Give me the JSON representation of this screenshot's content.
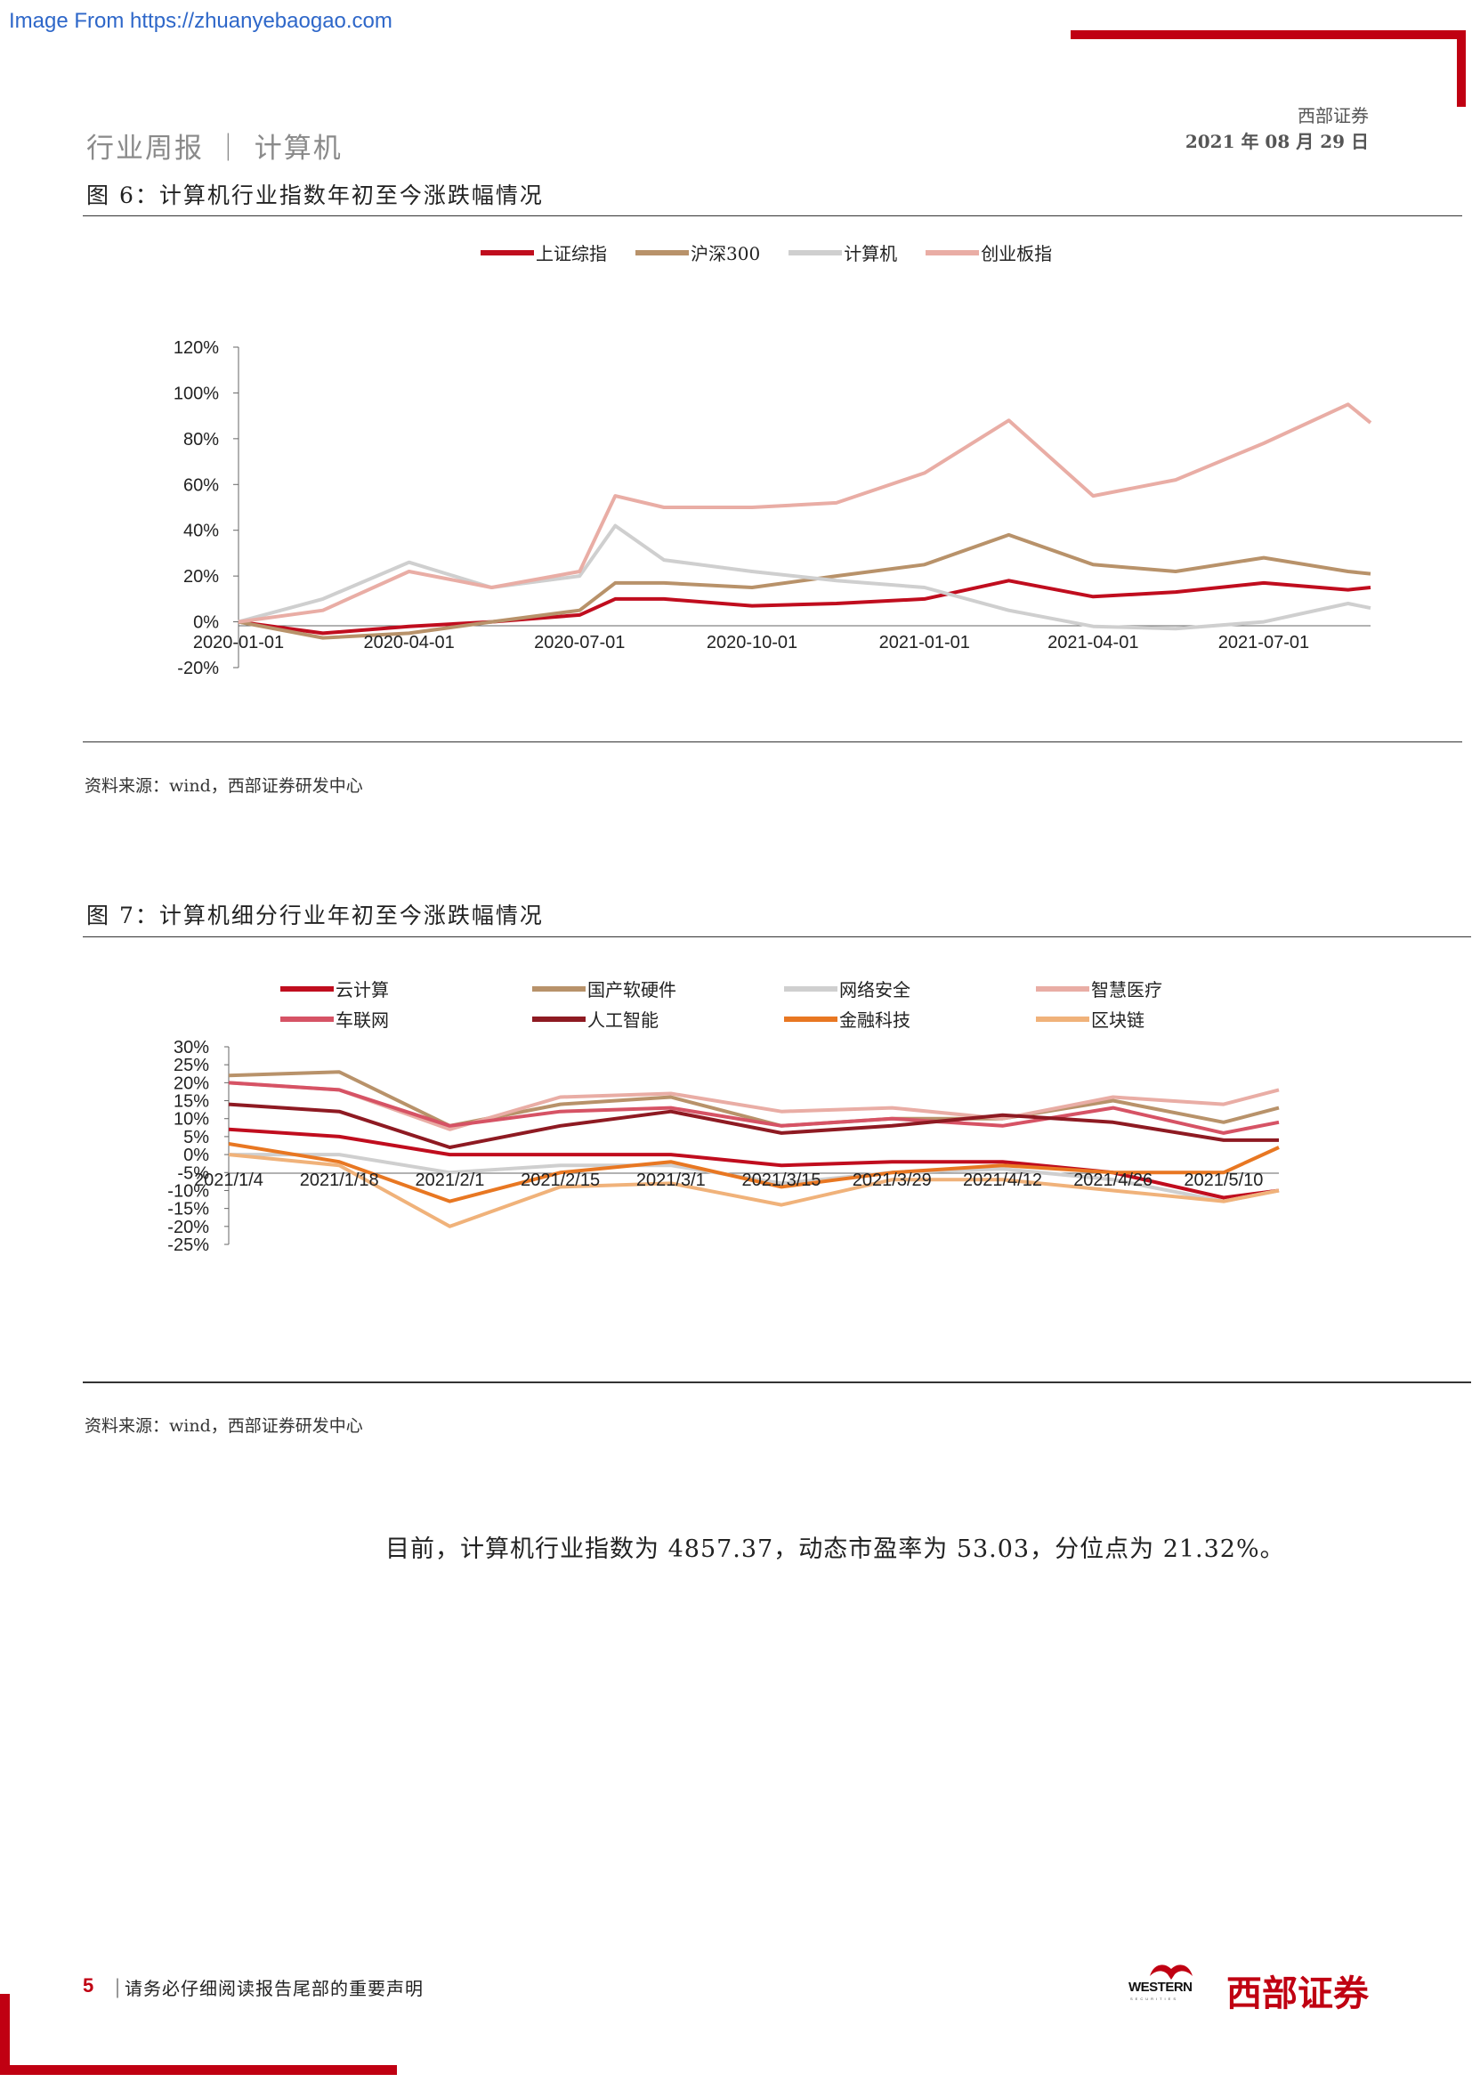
{
  "watermark": "Image From https://zhuanyebaogao.com",
  "header": {
    "left": "行业周报 ｜ 计算机",
    "company": "西部证券",
    "date": "2021 年 08 月 29 日"
  },
  "figures": [
    {
      "title": "图 6：计算机行业指数年初至今涨跌幅情况",
      "source": "资料来源：wind，西部证券研发中心"
    },
    {
      "title": "图 7：计算机细分行业年初至今涨跌幅情况",
      "source": "资料来源：wind，西部证券研发中心"
    }
  ],
  "body_text": "目前，计算机行业指数为 4857.37，动态市盈率为 53.03，分位点为 21.32%。",
  "footer": {
    "page": "5",
    "separator": "｜",
    "disclaimer": "请务必仔细阅读报告尾部的重要声明",
    "logo_en": "WESTERN",
    "logo_en_sub": "SECURITIES",
    "logo_cn": "西部证券"
  },
  "chart_data": [
    {
      "type": "line",
      "title": "图 6：计算机行业指数年初至今涨跌幅情况",
      "x": [
        "2020-01-01",
        "2020-02-15",
        "2020-04-01",
        "2020-05-15",
        "2020-07-01",
        "2020-07-20",
        "2020-08-15",
        "2020-10-01",
        "2020-11-15",
        "2021-01-01",
        "2021-02-15",
        "2021-04-01",
        "2021-05-15",
        "2021-07-01",
        "2021-08-15",
        "2021-08-27"
      ],
      "xticks": [
        "2020-01-01",
        "2020-04-01",
        "2020-07-01",
        "2020-10-01",
        "2021-01-01",
        "2021-04-01",
        "2021-07-01"
      ],
      "yticks": [
        "120%",
        "100%",
        "80%",
        "60%",
        "40%",
        "20%",
        "0%",
        "-20%"
      ],
      "ylim": [
        -20,
        120
      ],
      "series": [
        {
          "name": "上证综指",
          "color": "#c00d1e",
          "values": [
            0,
            -5,
            -2,
            0,
            3,
            10,
            10,
            7,
            8,
            10,
            18,
            11,
            13,
            17,
            14,
            15
          ]
        },
        {
          "name": "沪深300",
          "color": "#b8926a",
          "values": [
            0,
            -7,
            -5,
            0,
            5,
            17,
            17,
            15,
            20,
            25,
            38,
            25,
            22,
            28,
            22,
            21
          ]
        },
        {
          "name": "计算机",
          "color": "#cfcfcf",
          "values": [
            0,
            10,
            26,
            15,
            20,
            42,
            27,
            22,
            18,
            15,
            5,
            -2,
            -3,
            0,
            8,
            6
          ]
        },
        {
          "name": "创业板指",
          "color": "#e9ada5",
          "values": [
            0,
            5,
            22,
            15,
            22,
            55,
            50,
            50,
            52,
            65,
            88,
            55,
            62,
            78,
            95,
            87
          ]
        }
      ]
    },
    {
      "type": "line",
      "title": "图 7：计算机细分行业年初至今涨跌幅情况",
      "x": [
        "2021/1/4",
        "2021/1/18",
        "2021/2/1",
        "2021/2/15",
        "2021/3/1",
        "2021/3/15",
        "2021/3/29",
        "2021/4/12",
        "2021/4/26",
        "2021/5/10",
        "2021/5/17"
      ],
      "xticks": [
        "2021/1/4",
        "2021/1/18",
        "2021/2/1",
        "2021/2/15",
        "2021/3/1",
        "2021/3/15",
        "2021/3/29",
        "2021/4/12",
        "2021/4/26",
        "2021/5/10"
      ],
      "yticks": [
        "30%",
        "25%",
        "20%",
        "15%",
        "10%",
        "5%",
        "0%",
        "-5%",
        "-10%",
        "-15%",
        "-20%",
        "-25%"
      ],
      "ylim": [
        -25,
        30
      ],
      "series": [
        {
          "name": "云计算",
          "color": "#c00d1e",
          "values": [
            7,
            5,
            0,
            0,
            0,
            -3,
            -2,
            -2,
            -5,
            -12,
            -10
          ]
        },
        {
          "name": "国产软硬件",
          "color": "#b8926a",
          "values": [
            22,
            23,
            8,
            14,
            16,
            8,
            10,
            10,
            15,
            9,
            13
          ]
        },
        {
          "name": "网络安全",
          "color": "#cfcfcf",
          "values": [
            0,
            0,
            -5,
            -3,
            -3,
            -8,
            -5,
            -4,
            -7,
            -13,
            -10
          ]
        },
        {
          "name": "智慧医疗",
          "color": "#e9ada5",
          "values": [
            20,
            18,
            7,
            16,
            17,
            12,
            13,
            10,
            16,
            14,
            18
          ]
        },
        {
          "name": "车联网",
          "color": "#d65365",
          "values": [
            20,
            18,
            8,
            12,
            13,
            8,
            10,
            8,
            13,
            6,
            9
          ]
        },
        {
          "name": "人工智能",
          "color": "#8e1a22",
          "values": [
            14,
            12,
            2,
            8,
            12,
            6,
            8,
            11,
            9,
            4,
            4
          ]
        },
        {
          "name": "金融科技",
          "color": "#e87722",
          "values": [
            3,
            -2,
            -13,
            -5,
            -2,
            -9,
            -5,
            -3,
            -5,
            -5,
            2
          ]
        },
        {
          "name": "区块链",
          "color": "#f0b27a",
          "values": [
            0,
            -3,
            -20,
            -9,
            -8,
            -14,
            -7,
            -7,
            -10,
            -13,
            -10
          ]
        }
      ]
    }
  ]
}
